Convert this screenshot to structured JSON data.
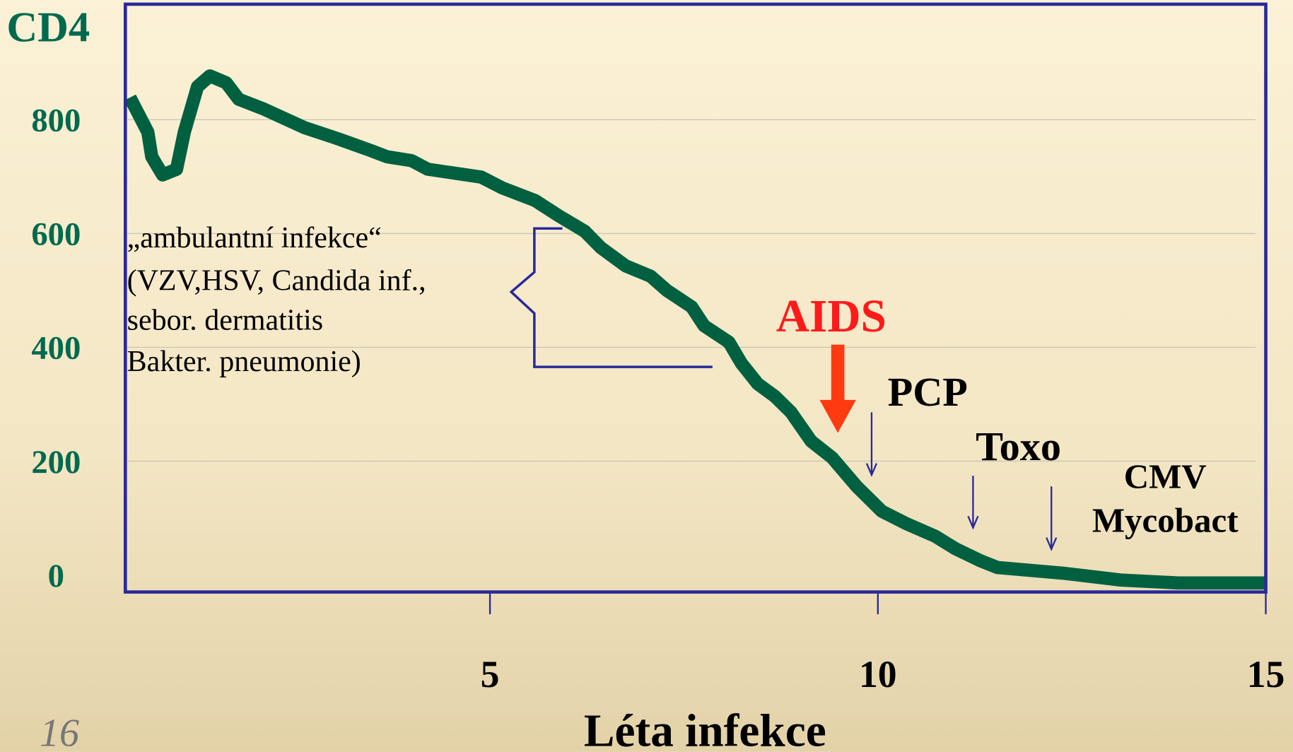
{
  "chart_data": {
    "type": "line",
    "y_label": "CD4",
    "x_label": "Léta infekce",
    "xlim": [
      0.3,
      15
    ],
    "ylim": [
      -30,
      1003
    ],
    "xticks": [
      5,
      10,
      15
    ],
    "yticks": [
      0,
      200,
      400,
      600,
      800
    ],
    "grid": true,
    "color": "#006040",
    "x": [
      0.36,
      0.59,
      0.64,
      0.78,
      0.96,
      1.06,
      1.23,
      1.39,
      1.6,
      1.76,
      2.08,
      2.61,
      3.03,
      3.46,
      3.67,
      3.99,
      4.2,
      4.89,
      5.16,
      5.58,
      5.9,
      6.22,
      6.43,
      6.75,
      7.07,
      7.28,
      7.6,
      7.76,
      8.08,
      8.24,
      8.45,
      8.67,
      8.88,
      9.14,
      9.41,
      9.73,
      10.05,
      10.37,
      10.74,
      11.0,
      11.32,
      11.54,
      12.39,
      13.13,
      13.87,
      14.99
    ],
    "values": [
      839,
      778,
      735,
      703,
      713,
      778,
      858,
      877,
      865,
      836,
      819,
      786,
      767,
      746,
      735,
      728,
      713,
      699,
      680,
      658,
      630,
      604,
      575,
      543,
      525,
      500,
      471,
      438,
      409,
      372,
      336,
      314,
      286,
      235,
      206,
      155,
      112,
      90,
      68,
      46,
      25,
      13,
      3,
      -9,
      -14,
      -14
    ],
    "annotations": {
      "infections": [
        "„ambulantní infekce“",
        "(VZV,HSV, Candida inf.,",
        "sebor. dermatitis",
        "Bakter. pneumonie)"
      ],
      "aids": "AIDS",
      "pcp": "PCP",
      "toxo": "Toxo",
      "cmv": [
        "CMV",
        "Mycobact"
      ]
    }
  },
  "slide_number": "16"
}
